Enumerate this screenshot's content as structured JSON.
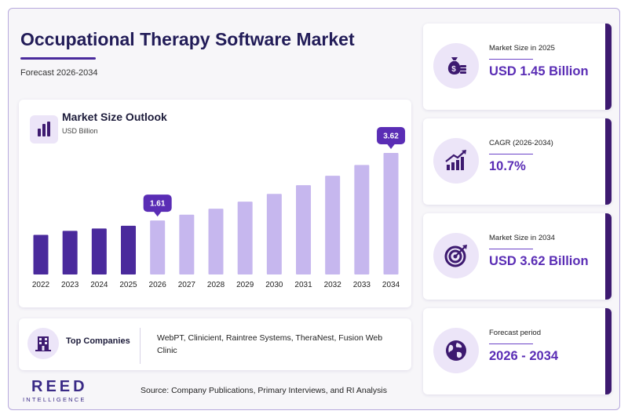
{
  "header": {
    "title": "Occupational Therapy Software Market",
    "subtitle": "Forecast 2026-2034"
  },
  "chart_panel": {
    "title": "Market Size Outlook",
    "unit": "USD Billion"
  },
  "chart_data": {
    "type": "bar",
    "title": "Market Size Outlook",
    "ylabel": "USD Billion",
    "categories": [
      "2022",
      "2023",
      "2024",
      "2025",
      "2026",
      "2027",
      "2028",
      "2029",
      "2030",
      "2031",
      "2032",
      "2033",
      "2034"
    ],
    "values": [
      1.18,
      1.3,
      1.37,
      1.45,
      1.61,
      1.78,
      1.96,
      2.17,
      2.4,
      2.66,
      2.94,
      3.26,
      3.62
    ],
    "ylim": [
      0,
      3.62
    ],
    "labeled_points": {
      "2026": "1.61",
      "2034": "3.62"
    },
    "historical_color": "#4a2a9c",
    "forecast_color": "#c6b7ee",
    "label_color": "#5a2db5",
    "grid": false
  },
  "companies": {
    "label": "Top Companies",
    "list": "WebPT, Clinicient, Raintree Systems, TheraNest, Fusion Web Clinic"
  },
  "brand": {
    "name": "REED",
    "tagline": "INTELLIGENCE"
  },
  "source": "Source: Company Publications, Primary Interviews, and RI Analysis",
  "stats": [
    {
      "label": "Market Size in 2025",
      "value": "USD 1.45 Billion",
      "icon": "money-bag-icon"
    },
    {
      "label": "CAGR (2026-2034)",
      "value": "10.7%",
      "icon": "growth-chart-icon"
    },
    {
      "label": "Market Size in 2034",
      "value": "USD 3.62 Billion",
      "icon": "target-icon"
    },
    {
      "label": "Forecast period",
      "value": "2026 - 2034",
      "icon": "globe-icon"
    }
  ],
  "colors": {
    "accent": "#5a2db5",
    "dark_purple": "#3d1a70",
    "light_purple": "#ece5f8"
  }
}
